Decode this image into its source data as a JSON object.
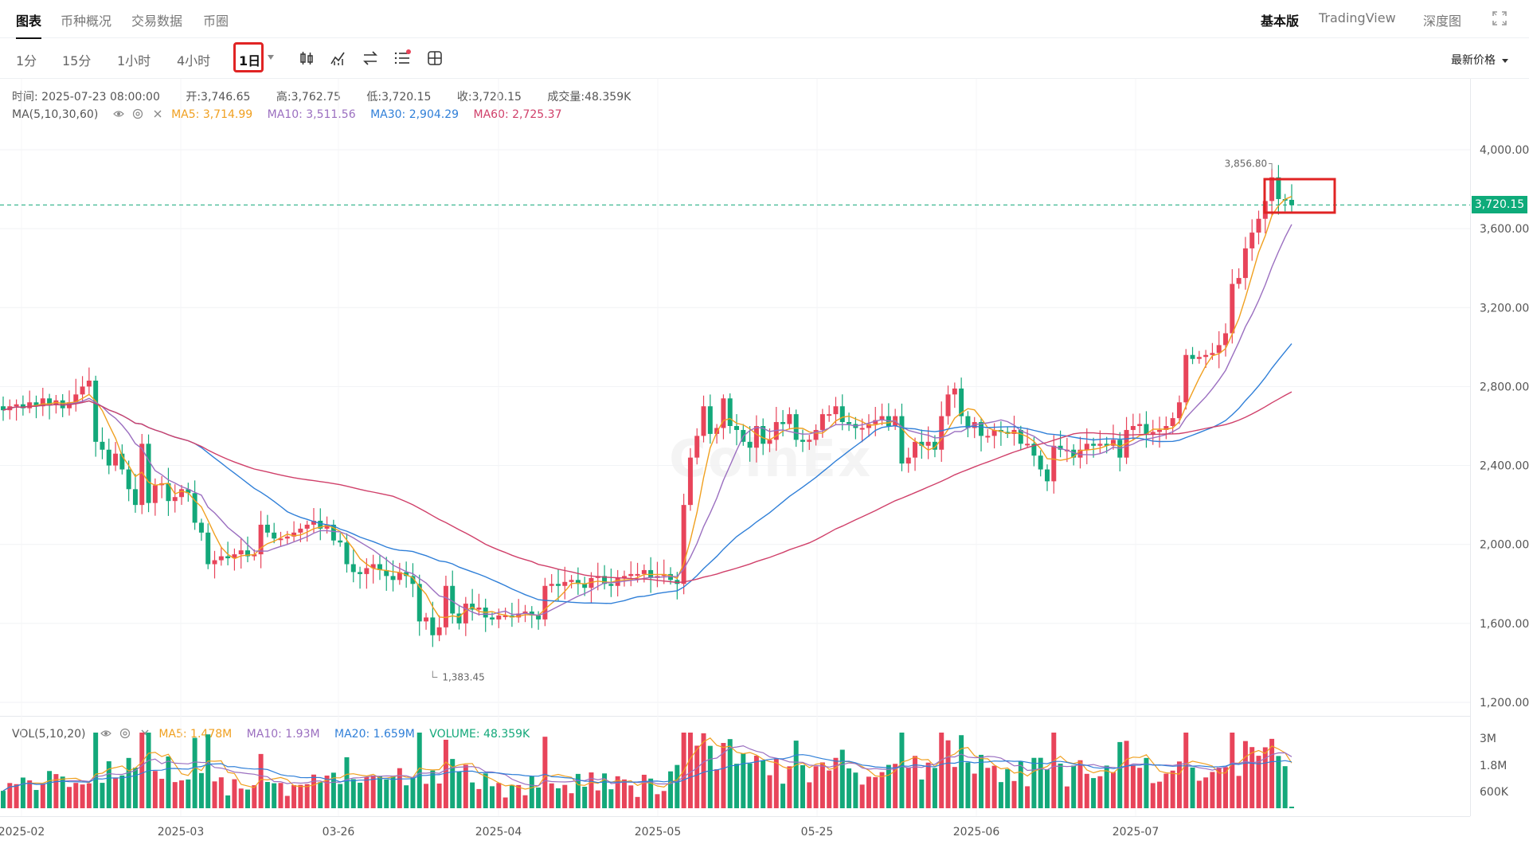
{
  "top_tabs": [
    "图表",
    "币种概况",
    "交易数据",
    "币圈"
  ],
  "top_right": {
    "basic": "基本版",
    "tradingview": "TradingView",
    "depth": "深度图"
  },
  "intervals": [
    "1分",
    "15分",
    "1小时",
    "4小时",
    "1日"
  ],
  "active_interval": "1日",
  "price_type": "最新价格",
  "ohlc": {
    "time_label": "时间:",
    "time": "2025-07-23 08:00:00",
    "open_label": "开:",
    "open": "3,746.65",
    "high_label": "高:",
    "high": "3,762.75",
    "low_label": "低:",
    "low": "3,720.15",
    "close_label": "收:",
    "close": "3,720.15",
    "volume_label": "成交量:",
    "volume": "48.359K"
  },
  "ma_legend": {
    "name": "MA(5,10,30,60)",
    "ma5": "MA5: 3,714.99",
    "ma10": "MA10: 3,511.56",
    "ma30": "MA30: 2,904.29",
    "ma60": "MA60: 2,725.37"
  },
  "vol_legend": {
    "name": "VOL(5,10,20)",
    "ma5": "MA5: 1.478M",
    "ma10": "MA10: 1.93M",
    "ma20": "MA20: 1.659M",
    "volume": "VOLUME: 48.359K"
  },
  "current_price": "3,720.15",
  "watermark": "CoinEx",
  "colors": {
    "up": "#e8445a",
    "down": "#13a87a",
    "ma5": "#f0a020",
    "ma10": "#9b6fc0",
    "ma30": "#2f7fd8",
    "ma60": "#d0406a",
    "highlight": "#e02424"
  },
  "icons": [
    "candlestick-icon",
    "indicator-icon",
    "compare-icon",
    "settings-list-icon",
    "layout-icon",
    "fullscreen-icon",
    "eye-icon",
    "target-icon",
    "close-icon"
  ],
  "chart_data": {
    "type": "candlestick",
    "y_ticks": [
      "4,000.00",
      "3,600.00",
      "3,200.00",
      "2,800.00",
      "2,400.00",
      "2,000.00",
      "1,600.00",
      "1,200.00"
    ],
    "y_tick_values": [
      4000,
      3600,
      3200,
      2800,
      2400,
      2000,
      1600,
      1200
    ],
    "ylim": [
      1200,
      4200
    ],
    "x_ticks": [
      "2025-02",
      "2025-03",
      "03-26",
      "2025-04",
      "2025-05",
      "05-25",
      "2025-06",
      "2025-07"
    ],
    "vol_ticks": [
      "3M",
      "1.8M",
      "600K"
    ],
    "vol_tick_values": [
      3000000,
      1800000,
      600000
    ],
    "annotations": {
      "high": "3,856.80",
      "low": "1,383.45"
    },
    "candles_close": [
      2680,
      2700,
      2710,
      2690,
      2720,
      2700,
      2740,
      2710,
      2730,
      2690,
      2720,
      2760,
      2800,
      2830,
      2520,
      2480,
      2400,
      2460,
      2380,
      2280,
      2200,
      2510,
      2210,
      2300,
      2310,
      2220,
      2240,
      2280,
      2260,
      2110,
      2060,
      1900,
      1920,
      1940,
      1930,
      1950,
      1970,
      1940,
      1950,
      2100,
      2060,
      2030,
      2030,
      2040,
      2060,
      2080,
      2100,
      2120,
      2080,
      2100,
      2020,
      2010,
      1900,
      1860,
      1850,
      1880,
      1900,
      1870,
      1840,
      1820,
      1860,
      1840,
      1800,
      1610,
      1630,
      1540,
      1580,
      1790,
      1650,
      1600,
      1700,
      1670,
      1680,
      1630,
      1620,
      1640,
      1640,
      1630,
      1650,
      1660,
      1640,
      1620,
      1790,
      1800,
      1790,
      1810,
      1820,
      1800,
      1780,
      1830,
      1840,
      1800,
      1790,
      1830,
      1840,
      1850,
      1850,
      1870,
      1830,
      1840,
      1850,
      1820,
      1800,
      2200,
      2440,
      2550,
      2700,
      2560,
      2590,
      2740,
      2600,
      2580,
      2520,
      2490,
      2600,
      2510,
      2530,
      2620,
      2610,
      2660,
      2530,
      2520,
      2530,
      2580,
      2660,
      2660,
      2700,
      2620,
      2610,
      2590,
      2590,
      2610,
      2630,
      2650,
      2600,
      2650,
      2410,
      2440,
      2520,
      2500,
      2520,
      2480,
      2650,
      2760,
      2790,
      2650,
      2590,
      2620,
      2550,
      2550,
      2580,
      2570,
      2560,
      2580,
      2510,
      2510,
      2450,
      2380,
      2320,
      2500,
      2480,
      2480,
      2440,
      2480,
      2510,
      2500,
      2510,
      2500,
      2530,
      2440,
      2580,
      2600,
      2610,
      2560,
      2570,
      2580,
      2600,
      2640,
      2720,
      2960,
      2940,
      2950,
      2960,
      2970,
      3010,
      3070,
      3320,
      3350,
      3500,
      3580,
      3650,
      3740,
      3860,
      3750,
      3746,
      3720
    ],
    "ma5": [
      3714.99
    ],
    "ma10": [
      3511.56
    ],
    "ma30": [
      2904.29
    ],
    "ma60": [
      2725.37
    ],
    "last_volume": "48.359K"
  }
}
